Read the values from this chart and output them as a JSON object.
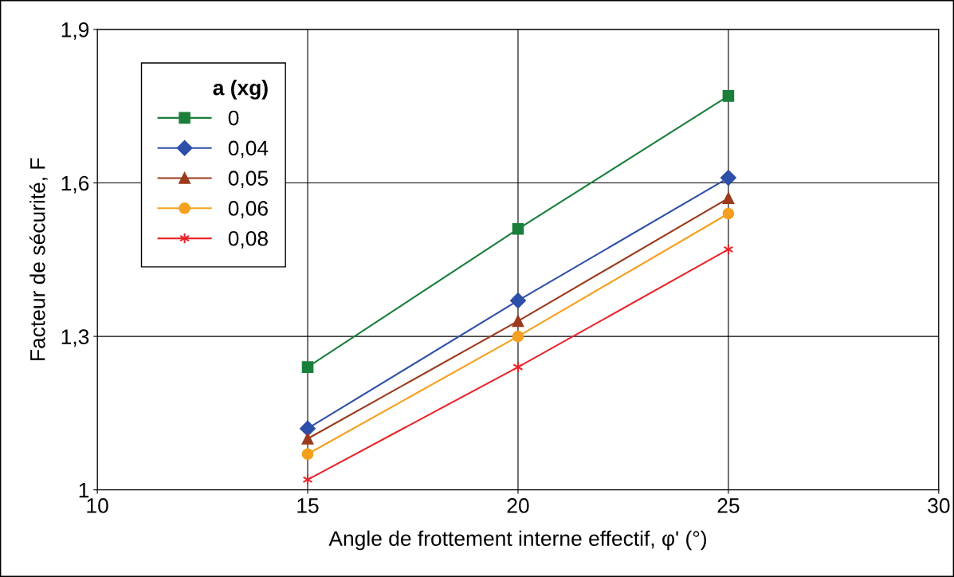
{
  "chart_data": {
    "type": "line",
    "xlabel": "Angle de frottement interne effectif, φ' (°)",
    "ylabel": "Facteur de sécurité, F",
    "legend_title": "a (xg)",
    "legend": "top left",
    "grid": true,
    "line_style": "solid",
    "xlim": [
      10,
      30
    ],
    "xticks": [
      10,
      15,
      20,
      25,
      30
    ],
    "ylim": [
      1,
      1.9
    ],
    "yticks": [
      1,
      {
        "value": 1.3,
        "label": "1,3"
      },
      {
        "value": 1.6,
        "label": "1,6"
      },
      {
        "value": 1.9,
        "label": "1,9"
      }
    ],
    "x": [
      15,
      20,
      25
    ],
    "series": [
      {
        "name": "0",
        "color": "#1a7f3a",
        "marker": "square",
        "values": [
          1.24,
          1.51,
          1.77
        ]
      },
      {
        "name": "0,04",
        "color": "#2e4fa8",
        "marker": "diamond",
        "values": [
          1.12,
          1.37,
          1.61
        ]
      },
      {
        "name": "0,05",
        "color": "#9c3a1c",
        "marker": "triangle",
        "values": [
          1.1,
          1.33,
          1.57
        ]
      },
      {
        "name": "0,06",
        "color": "#f5a01e",
        "marker": "circle",
        "values": [
          1.07,
          1.3,
          1.54
        ]
      },
      {
        "name": "0,08",
        "color": "#e8262b",
        "marker": "cross",
        "values": [
          1.02,
          1.24,
          1.47
        ]
      }
    ]
  }
}
